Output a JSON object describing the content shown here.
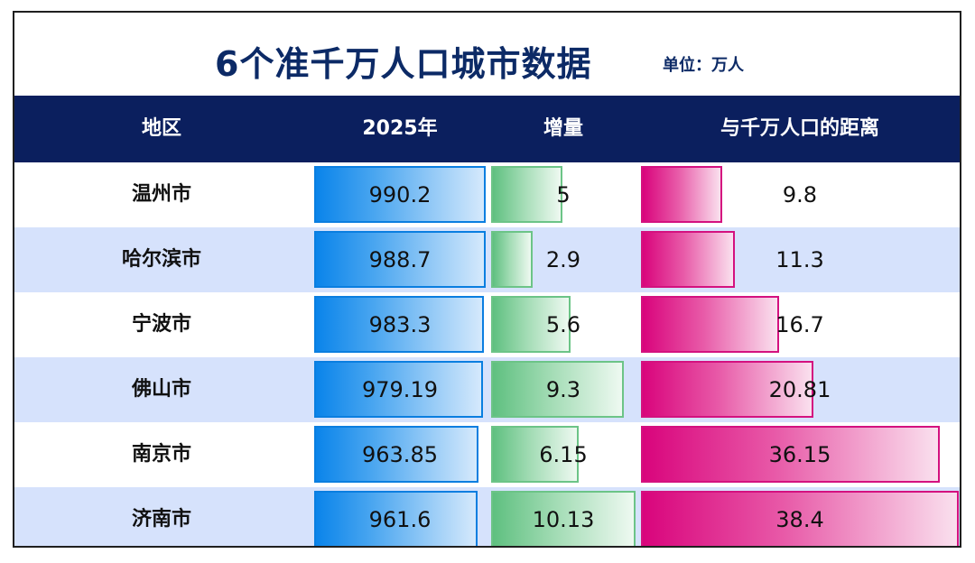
{
  "title": "6个准千万人口城市数据",
  "unit_label": "单位：万人",
  "colors": {
    "header_bg": "#0b1f5e",
    "title": "#0c2a66",
    "alt_row": "#d6e2fc",
    "pop_bar": "#0a84ea",
    "increase_bar": "#5fc080",
    "gap_bar": "#d9047c"
  },
  "chart_data": {
    "type": "table",
    "columns": [
      "地区",
      "2025年",
      "增量",
      "与千万人口的距离"
    ],
    "categories": [
      "温州市",
      "哈尔滨市",
      "宁波市",
      "佛山市",
      "南京市",
      "济南市"
    ],
    "series": [
      {
        "name": "2025年",
        "values": [
          "990.2",
          "988.7",
          "983.3",
          "979.19",
          "963.85",
          "961.6"
        ]
      },
      {
        "name": "增量",
        "values": [
          "5",
          "2.9",
          "5.6",
          "9.3",
          "6.15",
          "10.13"
        ]
      },
      {
        "name": "与千万人口的距离",
        "values": [
          "9.8",
          "11.3",
          "16.7",
          "20.81",
          "36.15",
          "38.4"
        ]
      }
    ]
  }
}
